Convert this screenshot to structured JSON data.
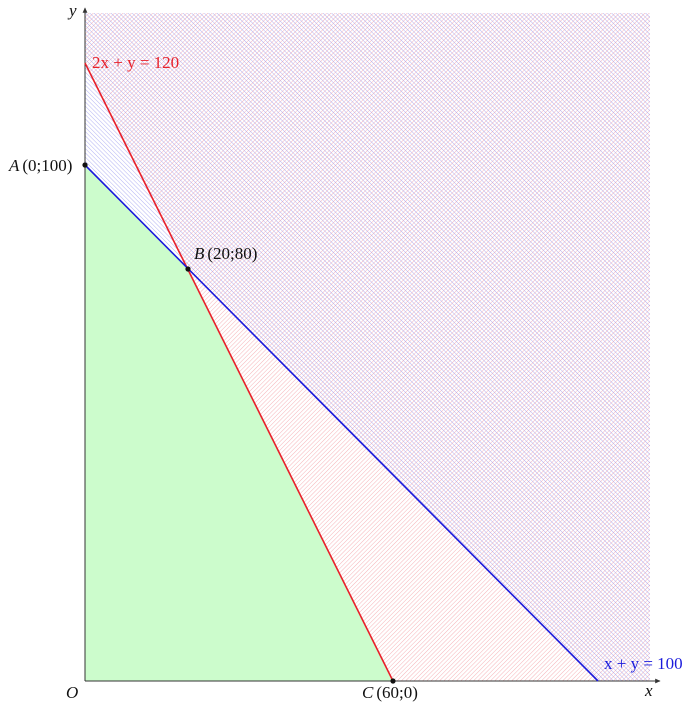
{
  "diagram": {
    "axes": {
      "x_label": "x",
      "y_label": "y",
      "origin_label": "O"
    },
    "lines": [
      {
        "id": "red-line",
        "label": "2x + y = 120",
        "color": "#e8202a"
      },
      {
        "id": "blue-line",
        "label": "x + y = 100",
        "color": "#1a1adc"
      }
    ],
    "points": {
      "A": {
        "name": "A",
        "coords": "(0;100)"
      },
      "B": {
        "name": "B",
        "coords": "(20;80)"
      },
      "C": {
        "name": "C",
        "coords": "(60;0)"
      }
    },
    "colors": {
      "feasible_region": "#ccfccc",
      "red_hatch": "#f4a0a6",
      "blue_hatch": "#9e9ef0",
      "axis": "#333333"
    }
  }
}
